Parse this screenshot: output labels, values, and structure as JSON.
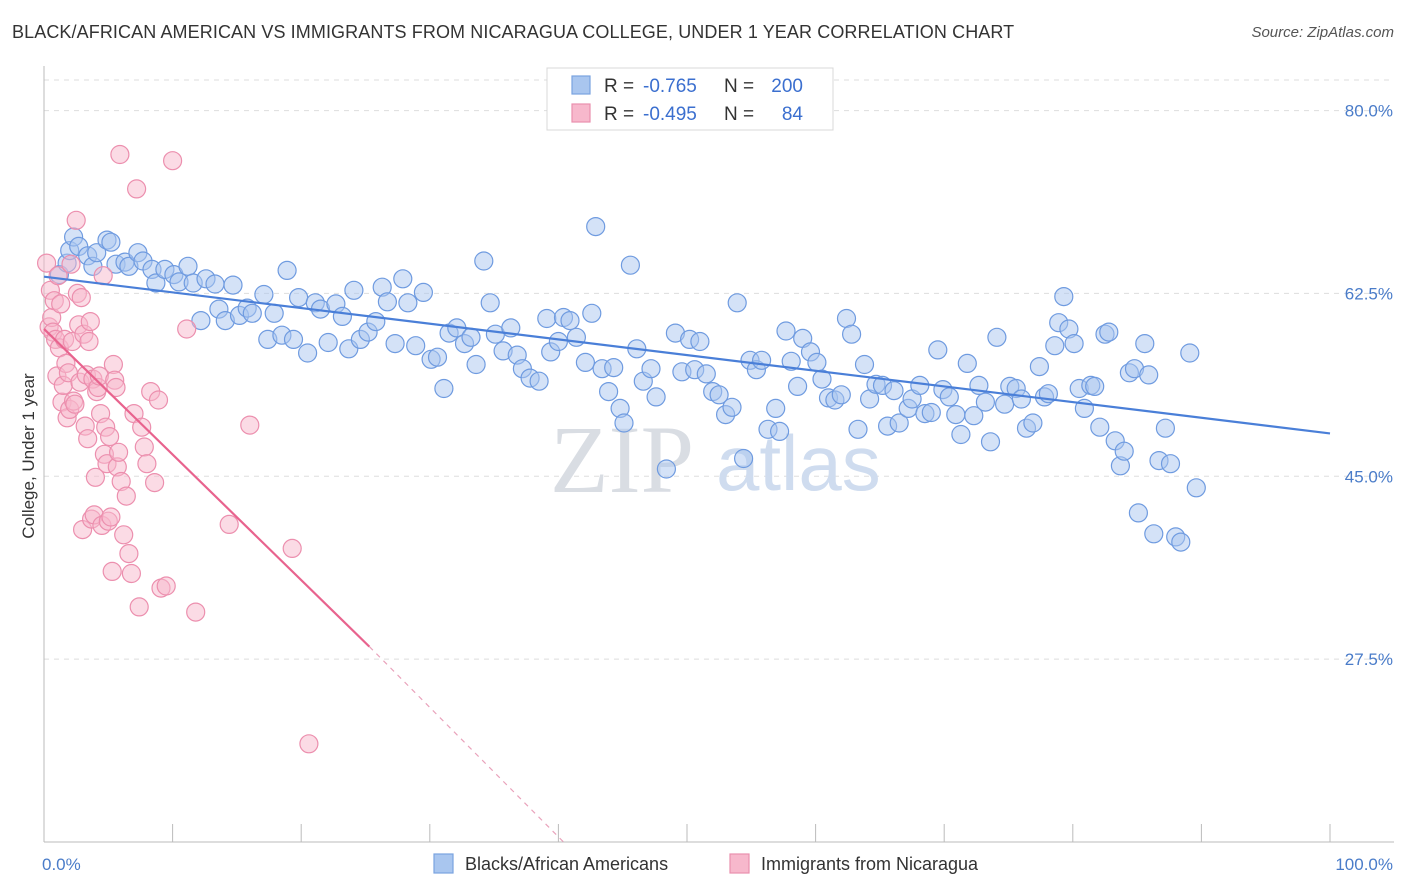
{
  "title": "BLACK/AFRICAN AMERICAN VS IMMIGRANTS FROM NICARAGUA COLLEGE, UNDER 1 YEAR CORRELATION CHART",
  "source": "Source: ZipAtlas.com",
  "watermark": {
    "zip": "ZIP",
    "atlas": "atlas"
  },
  "legend": {
    "series1": {
      "r_label": "R = ",
      "r_value": "-0.765",
      "n_label": "N = ",
      "n_value": "200"
    },
    "series2": {
      "r_label": "R = ",
      "r_value": "-0.495",
      "n_label": "N = ",
      "n_value": "84"
    }
  },
  "bottom_legend": [
    "Blacks/African Americans",
    "Immigrants from Nicaragua"
  ],
  "colors": {
    "blue": "#4a7fd8",
    "blue_fill": "#a9c6ef",
    "pink": "#e8638e",
    "pink_fill": "#f7b8cc",
    "grid": "#dddddd"
  },
  "chart_data": {
    "type": "scatter",
    "title": "BLACK/AFRICAN AMERICAN VS IMMIGRANTS FROM NICARAGUA COLLEGE, UNDER 1 YEAR CORRELATION CHART",
    "xlabel": "",
    "ylabel": "College, Under 1 year",
    "xlim": [
      0,
      100
    ],
    "ylim": [
      10,
      83.5
    ],
    "x_ticks": [
      "0.0%",
      "100.0%"
    ],
    "y_ticks": [
      {
        "value": 80,
        "label": "80.0%"
      },
      {
        "value": 62.5,
        "label": "62.5%"
      },
      {
        "value": 45,
        "label": "45.0%"
      },
      {
        "value": 27.5,
        "label": "27.5%"
      }
    ],
    "grid": true,
    "legend_position": "top-center",
    "series": [
      {
        "name": "Blacks/African Americans",
        "r": -0.765,
        "n": 200,
        "trend": {
          "x": [
            0,
            100
          ],
          "y": [
            64.1,
            49.1
          ]
        },
        "points": [
          [
            1.2,
            64.3
          ],
          [
            1.8,
            65.4
          ],
          [
            2,
            66.6
          ],
          [
            2.3,
            67.9
          ],
          [
            2.7,
            67
          ],
          [
            3.4,
            66.1
          ],
          [
            3.8,
            65.1
          ],
          [
            4.1,
            66.4
          ],
          [
            4.9,
            67.6
          ],
          [
            5.2,
            67.4
          ],
          [
            5.6,
            65.3
          ],
          [
            6.3,
            65.5
          ],
          [
            6.6,
            65.1
          ],
          [
            7.3,
            66.4
          ],
          [
            7.7,
            65.6
          ],
          [
            8.4,
            64.8
          ],
          [
            8.7,
            63.5
          ],
          [
            9.4,
            64.8
          ],
          [
            10.1,
            64.3
          ],
          [
            10.5,
            63.6
          ],
          [
            11.2,
            65.1
          ],
          [
            11.6,
            63.5
          ],
          [
            12.2,
            59.9
          ],
          [
            12.6,
            63.9
          ],
          [
            13.3,
            63.4
          ],
          [
            13.6,
            61
          ],
          [
            14.1,
            59.9
          ],
          [
            14.7,
            63.3
          ],
          [
            15.2,
            60.4
          ],
          [
            15.8,
            61.1
          ],
          [
            16.2,
            60.6
          ],
          [
            17.1,
            62.4
          ],
          [
            17.4,
            58.1
          ],
          [
            17.9,
            60.6
          ],
          [
            18.5,
            58.5
          ],
          [
            18.9,
            64.7
          ],
          [
            19.4,
            58.1
          ],
          [
            19.8,
            62.1
          ],
          [
            20.5,
            56.8
          ],
          [
            21.1,
            61.6
          ],
          [
            21.5,
            61
          ],
          [
            22.1,
            57.8
          ],
          [
            22.7,
            61.5
          ],
          [
            23.2,
            60.3
          ],
          [
            23.7,
            57.2
          ],
          [
            24.1,
            62.8
          ],
          [
            24.6,
            58.1
          ],
          [
            25.2,
            58.8
          ],
          [
            25.8,
            59.8
          ],
          [
            26.3,
            63.1
          ],
          [
            26.7,
            61.7
          ],
          [
            27.3,
            57.7
          ],
          [
            27.9,
            63.9
          ],
          [
            28.3,
            61.6
          ],
          [
            28.9,
            57.5
          ],
          [
            29.5,
            62.6
          ],
          [
            30.1,
            56.2
          ],
          [
            30.6,
            56.4
          ],
          [
            31.1,
            53.4
          ],
          [
            31.5,
            58.7
          ],
          [
            32.1,
            59.2
          ],
          [
            32.7,
            57.7
          ],
          [
            33.2,
            58.3
          ],
          [
            33.6,
            55.7
          ],
          [
            34.2,
            65.6
          ],
          [
            34.7,
            61.6
          ],
          [
            35.1,
            58.6
          ],
          [
            35.7,
            57
          ],
          [
            36.3,
            59.2
          ],
          [
            36.8,
            56.6
          ],
          [
            37.2,
            55.3
          ],
          [
            37.8,
            54.4
          ],
          [
            38.5,
            54.1
          ],
          [
            39.1,
            60.1
          ],
          [
            39.4,
            56.9
          ],
          [
            40,
            57.9
          ],
          [
            40.4,
            60.2
          ],
          [
            40.9,
            59.9
          ],
          [
            41.4,
            58.3
          ],
          [
            42.1,
            55.9
          ],
          [
            42.6,
            60.6
          ],
          [
            42.9,
            68.9
          ],
          [
            43.4,
            55.3
          ],
          [
            43.9,
            53.1
          ],
          [
            44.3,
            55.4
          ],
          [
            44.8,
            51.5
          ],
          [
            45.1,
            50.1
          ],
          [
            45.6,
            65.2
          ],
          [
            46.1,
            57.2
          ],
          [
            46.6,
            54.1
          ],
          [
            47.2,
            55.3
          ],
          [
            47.6,
            52.6
          ],
          [
            48.4,
            45.7
          ],
          [
            49.1,
            58.7
          ],
          [
            49.6,
            55
          ],
          [
            50.2,
            58.1
          ],
          [
            50.6,
            55.2
          ],
          [
            51,
            57.9
          ],
          [
            51.5,
            54.8
          ],
          [
            52,
            53.1
          ],
          [
            52.5,
            52.8
          ],
          [
            53,
            50.9
          ],
          [
            53.5,
            51.6
          ],
          [
            53.9,
            61.6
          ],
          [
            54.4,
            46.7
          ],
          [
            54.9,
            56.1
          ],
          [
            55.4,
            55.2
          ],
          [
            55.8,
            56.1
          ],
          [
            56.3,
            49.5
          ],
          [
            56.9,
            51.5
          ],
          [
            57.2,
            49.3
          ],
          [
            57.7,
            58.9
          ],
          [
            58.1,
            56
          ],
          [
            58.6,
            53.6
          ],
          [
            59,
            58.2
          ],
          [
            59.6,
            56.9
          ],
          [
            60.1,
            55.9
          ],
          [
            60.5,
            54.3
          ],
          [
            61,
            52.5
          ],
          [
            61.5,
            52.3
          ],
          [
            62,
            52.8
          ],
          [
            62.4,
            60.1
          ],
          [
            62.8,
            58.6
          ],
          [
            63.3,
            49.5
          ],
          [
            63.8,
            55.7
          ],
          [
            64.2,
            52.4
          ],
          [
            64.7,
            53.8
          ],
          [
            65.2,
            53.7
          ],
          [
            65.6,
            49.8
          ],
          [
            66.1,
            53.2
          ],
          [
            66.5,
            50.1
          ],
          [
            67.2,
            51.5
          ],
          [
            67.5,
            52.4
          ],
          [
            68.1,
            53.7
          ],
          [
            68.5,
            51
          ],
          [
            69,
            51.1
          ],
          [
            69.5,
            57.1
          ],
          [
            69.9,
            53.3
          ],
          [
            70.4,
            52.6
          ],
          [
            70.9,
            50.9
          ],
          [
            71.3,
            49
          ],
          [
            71.8,
            55.8
          ],
          [
            72.3,
            50.8
          ],
          [
            72.7,
            53.7
          ],
          [
            73.2,
            52.1
          ],
          [
            73.6,
            48.3
          ],
          [
            74.1,
            58.3
          ],
          [
            74.7,
            51.9
          ],
          [
            75.1,
            53.6
          ],
          [
            75.6,
            53.4
          ],
          [
            76,
            52.4
          ],
          [
            76.4,
            49.6
          ],
          [
            76.9,
            50.1
          ],
          [
            77.4,
            55.5
          ],
          [
            77.8,
            52.6
          ],
          [
            78.1,
            52.9
          ],
          [
            78.6,
            57.5
          ],
          [
            78.9,
            59.7
          ],
          [
            79.3,
            62.2
          ],
          [
            79.7,
            59.1
          ],
          [
            80.1,
            57.7
          ],
          [
            80.5,
            53.4
          ],
          [
            80.9,
            51.5
          ],
          [
            81.4,
            53.7
          ],
          [
            81.7,
            53.6
          ],
          [
            82.1,
            49.7
          ],
          [
            82.5,
            58.6
          ],
          [
            82.8,
            58.8
          ],
          [
            83.3,
            48.4
          ],
          [
            83.7,
            46
          ],
          [
            84,
            47.4
          ],
          [
            84.4,
            54.9
          ],
          [
            84.8,
            55.3
          ],
          [
            85.1,
            41.5
          ],
          [
            85.6,
            57.7
          ],
          [
            85.9,
            54.7
          ],
          [
            86.3,
            39.5
          ],
          [
            86.7,
            46.5
          ],
          [
            87.2,
            49.6
          ],
          [
            87.6,
            46.2
          ],
          [
            88,
            39.2
          ],
          [
            88.4,
            38.7
          ],
          [
            89.1,
            56.8
          ],
          [
            89.6,
            43.9
          ]
        ]
      },
      {
        "name": "Immigrants from Nicaragua",
        "r": -0.495,
        "n": 84,
        "trend": {
          "x": [
            0,
            25.3
          ],
          "y": [
            59.1,
            28.7
          ]
        },
        "trend_dashed": {
          "x": [
            25.3,
            40.4
          ],
          "y": [
            28.7,
            10
          ]
        },
        "points": [
          [
            0.2,
            65.4
          ],
          [
            0.4,
            59.3
          ],
          [
            0.5,
            62.8
          ],
          [
            0.6,
            60.2
          ],
          [
            0.7,
            58.8
          ],
          [
            0.8,
            61.8
          ],
          [
            0.9,
            58.1
          ],
          [
            1,
            54.6
          ],
          [
            1.1,
            64.2
          ],
          [
            1.2,
            57.3
          ],
          [
            1.3,
            61.5
          ],
          [
            1.4,
            52.1
          ],
          [
            1.5,
            53.7
          ],
          [
            1.6,
            58.1
          ],
          [
            1.7,
            55.8
          ],
          [
            1.8,
            50.6
          ],
          [
            1.9,
            54.9
          ],
          [
            2,
            51.4
          ],
          [
            2.1,
            65.3
          ],
          [
            2.2,
            57.9
          ],
          [
            2.3,
            52.2
          ],
          [
            2.4,
            51.9
          ],
          [
            2.5,
            69.5
          ],
          [
            2.6,
            62.5
          ],
          [
            2.7,
            59.5
          ],
          [
            2.8,
            54
          ],
          [
            2.9,
            62.1
          ],
          [
            3,
            39.9
          ],
          [
            3.1,
            58.6
          ],
          [
            3.2,
            49.8
          ],
          [
            3.3,
            54.7
          ],
          [
            3.4,
            48.6
          ],
          [
            3.5,
            57.9
          ],
          [
            3.6,
            59.8
          ],
          [
            3.7,
            40.9
          ],
          [
            3.8,
            54.3
          ],
          [
            3.9,
            41.3
          ],
          [
            4,
            44.9
          ],
          [
            4.1,
            53.1
          ],
          [
            4.2,
            53.5
          ],
          [
            4.3,
            54.6
          ],
          [
            4.4,
            51
          ],
          [
            4.5,
            40.3
          ],
          [
            4.6,
            64.2
          ],
          [
            4.7,
            47.1
          ],
          [
            4.8,
            49.7
          ],
          [
            4.9,
            46.2
          ],
          [
            5,
            40.7
          ],
          [
            5.1,
            48.8
          ],
          [
            5.2,
            41.1
          ],
          [
            5.3,
            35.9
          ],
          [
            5.4,
            55.7
          ],
          [
            5.5,
            54.2
          ],
          [
            5.6,
            53.5
          ],
          [
            5.7,
            45.9
          ],
          [
            5.8,
            47.3
          ],
          [
            5.9,
            75.8
          ],
          [
            6,
            44.5
          ],
          [
            6.2,
            39.4
          ],
          [
            6.4,
            43.1
          ],
          [
            6.6,
            37.6
          ],
          [
            6.8,
            35.7
          ],
          [
            7,
            51
          ],
          [
            7.2,
            72.5
          ],
          [
            7.4,
            32.5
          ],
          [
            7.6,
            49.7
          ],
          [
            7.8,
            47.8
          ],
          [
            8,
            46.2
          ],
          [
            8.3,
            53.1
          ],
          [
            8.6,
            44.4
          ],
          [
            8.9,
            52.3
          ],
          [
            9.1,
            34.3
          ],
          [
            9.5,
            34.5
          ],
          [
            10,
            75.2
          ],
          [
            11.1,
            59.1
          ],
          [
            11.8,
            32
          ],
          [
            14.4,
            40.4
          ],
          [
            16,
            49.9
          ],
          [
            19.3,
            38.1
          ],
          [
            20.6,
            19.4
          ]
        ]
      }
    ]
  }
}
